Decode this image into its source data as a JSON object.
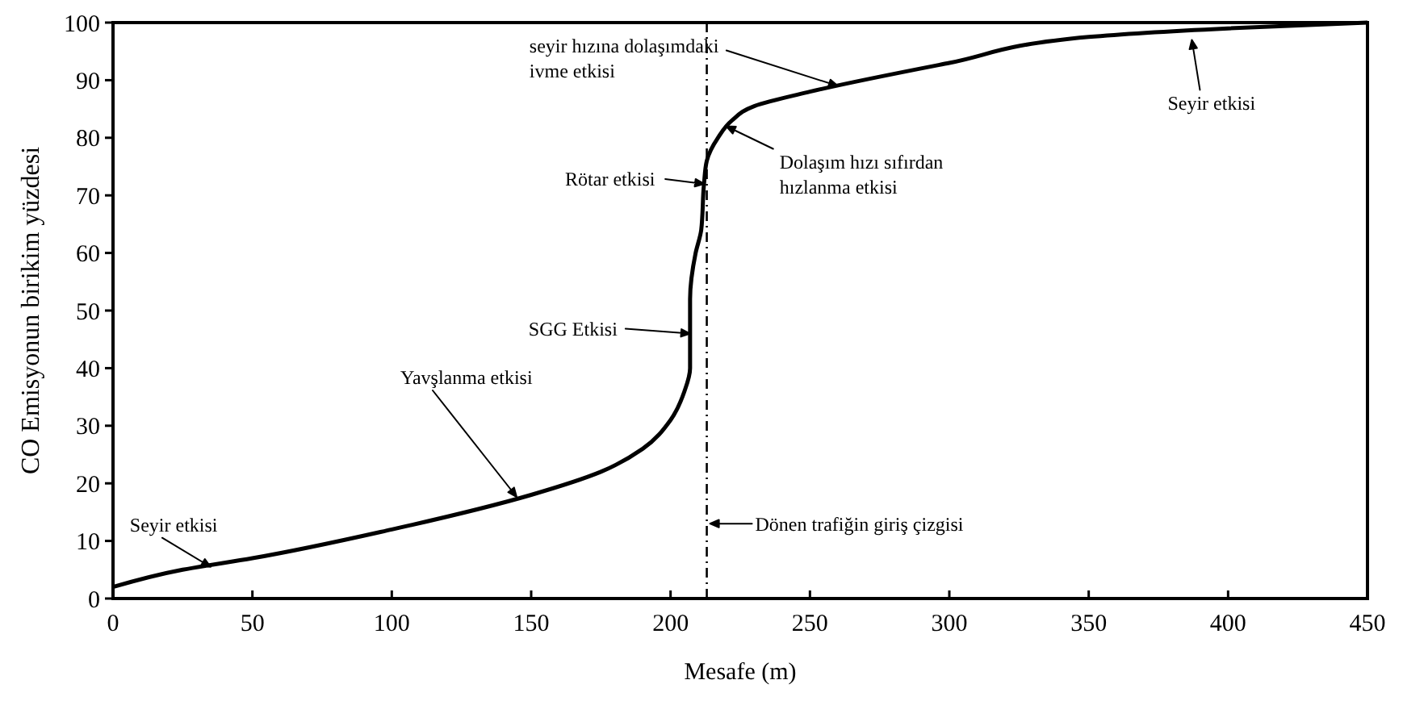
{
  "chart_data": {
    "type": "line",
    "xlabel": "Mesafe  (m)",
    "ylabel": "CO Emisyonun birikim yüzdesi",
    "x": [
      0,
      25,
      50,
      100,
      150,
      175,
      190,
      200,
      205,
      207,
      207,
      209,
      211,
      212,
      213,
      217,
      222,
      230,
      250,
      300,
      350,
      400,
      450
    ],
    "series": [
      {
        "color": "#000000",
        "values": [
          2,
          5,
          7,
          12,
          18,
          22,
          26,
          31,
          36,
          40,
          52,
          60,
          64,
          72,
          76,
          80,
          83,
          85.5,
          88,
          93,
          97.5,
          99,
          100
        ]
      }
    ],
    "xlim": [
      0,
      450
    ],
    "xticks": [
      0,
      50,
      100,
      150,
      200,
      250,
      300,
      350,
      400,
      450
    ],
    "ylim": [
      0,
      100
    ],
    "yticks": [
      0,
      10,
      20,
      30,
      40,
      50,
      60,
      70,
      80,
      90,
      100
    ],
    "grid": false,
    "marker": "none",
    "line_style": "solid",
    "ref_lines": [
      {
        "axis": "x",
        "value": 213,
        "label": "Dönen trafiğin giriş çizgisi",
        "line_style": "dashed",
        "color": "#000000"
      }
    ],
    "annotations": [
      {
        "text": "Seyir etkisi",
        "x": 35,
        "y": 5.5
      },
      "Yavşlanma etkisi",
      {
        "text": "SGG Etkisi",
        "x": 207,
        "y": 46
      },
      {
        "text": "Rötar etkisi",
        "x": 212,
        "y": 72
      },
      {
        "text": "seyir hızına dolaşımdaki\nivme etkisi",
        "x": 260,
        "y": 89
      },
      {
        "text": "Dolaşım hızı sıfırdan\nhızlanma etkisi",
        "x": 220,
        "y": 82
      },
      {
        "text": "Seyir etkisi",
        "x": 387,
        "y": 97
      }
    ]
  }
}
